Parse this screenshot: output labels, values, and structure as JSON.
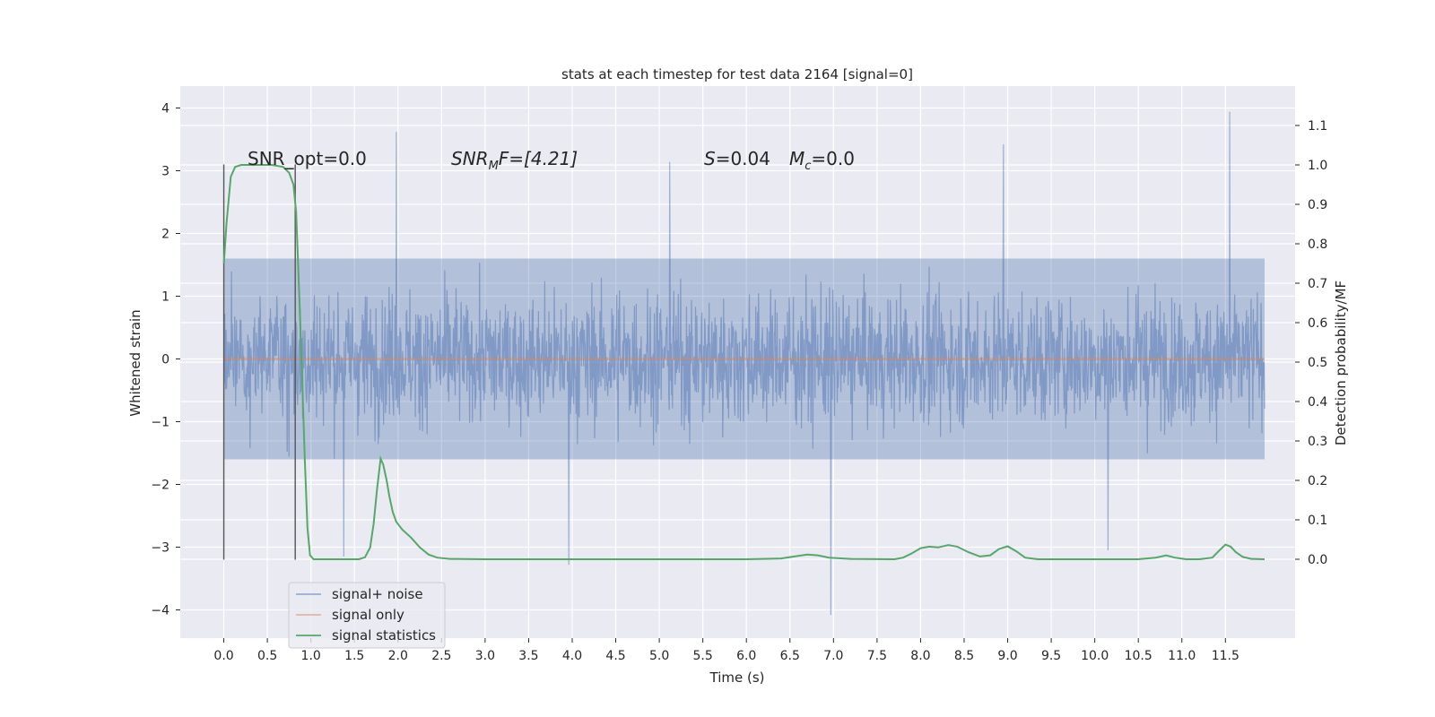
{
  "chart_data": {
    "type": "line",
    "title": "stats at each timestep for test data 2164 [signal=0]",
    "xlabel": "Time (s)",
    "ylabel_left": "Whitened strain",
    "ylabel_right": "Detection probability/MF",
    "xlim": [
      -0.5,
      12.3
    ],
    "ylim_left": [
      -4.45,
      4.35
    ],
    "ylim_right": [
      -0.2,
      1.2
    ],
    "x_ticks": [
      "0.0",
      "0.5",
      "1.0",
      "1.5",
      "2.0",
      "2.5",
      "3.0",
      "3.5",
      "4.0",
      "4.5",
      "5.0",
      "5.5",
      "6.0",
      "6.5",
      "7.0",
      "7.5",
      "8.0",
      "8.5",
      "9.0",
      "9.5",
      "10.0",
      "10.5",
      "11.0",
      "11.5"
    ],
    "y_left_ticks": [
      "4",
      "3",
      "2",
      "1",
      "0",
      "−1",
      "−2",
      "−3",
      "−4"
    ],
    "y_right_ticks": [
      "1.1",
      "1.0",
      "0.9",
      "0.8",
      "0.7",
      "0.6",
      "0.5",
      "0.4",
      "0.3",
      "0.2",
      "0.1",
      "0.0"
    ],
    "grid": true,
    "legend_placement": "lower-left",
    "annotations": {
      "snr_opt": "SNR_opt=0.0",
      "snr_mf_prefix": "SNR",
      "snr_mf_sub": "M",
      "snr_mf_suffix": "F=[4.21]",
      "s_prefix": "S",
      "s_suffix": "=0.04",
      "mc_prefix": "M",
      "mc_sub": "c",
      "mc_suffix": "=0.0"
    },
    "markers": {
      "vertical_lines_x": [
        0.0,
        0.82
      ],
      "y_range": [
        -3.2,
        3.1
      ]
    },
    "series": [
      {
        "name": "signal+ noise",
        "color": "#4c72b0",
        "opacity": 0.5,
        "x_range": [
          0.0,
          11.95
        ],
        "typical_range": [
          -1.6,
          1.6
        ],
        "extremes": [
          {
            "x": 1.98,
            "y": 3.62
          },
          {
            "x": 11.55,
            "y": 3.94
          },
          {
            "x": 8.95,
            "y": 3.42
          },
          {
            "x": 5.12,
            "y": 3.14
          },
          {
            "x": 6.97,
            "y": -4.08
          },
          {
            "x": 3.96,
            "y": -3.28
          },
          {
            "x": 10.15,
            "y": -3.05
          },
          {
            "x": 1.38,
            "y": -3.15
          }
        ]
      },
      {
        "name": "signal only",
        "color": "#dd8452",
        "x_range": [
          0.0,
          11.95
        ],
        "values_const": 0.0
      },
      {
        "name": "signal statistics",
        "color": "#55a868",
        "axis": "right",
        "points": [
          [
            0.0,
            0.75
          ],
          [
            0.03,
            0.85
          ],
          [
            0.08,
            0.97
          ],
          [
            0.13,
            0.995
          ],
          [
            0.2,
            1.0
          ],
          [
            0.35,
            1.0
          ],
          [
            0.55,
            1.0
          ],
          [
            0.68,
            0.995
          ],
          [
            0.75,
            0.98
          ],
          [
            0.8,
            0.95
          ],
          [
            0.83,
            0.88
          ],
          [
            0.87,
            0.65
          ],
          [
            0.9,
            0.45
          ],
          [
            0.93,
            0.25
          ],
          [
            0.96,
            0.08
          ],
          [
            0.99,
            0.01
          ],
          [
            1.03,
            0.0
          ],
          [
            1.15,
            0.0
          ],
          [
            1.4,
            0.0
          ],
          [
            1.55,
            0.0
          ],
          [
            1.62,
            0.005
          ],
          [
            1.68,
            0.03
          ],
          [
            1.72,
            0.09
          ],
          [
            1.76,
            0.18
          ],
          [
            1.8,
            0.255
          ],
          [
            1.83,
            0.24
          ],
          [
            1.87,
            0.2
          ],
          [
            1.9,
            0.16
          ],
          [
            1.94,
            0.12
          ],
          [
            1.98,
            0.095
          ],
          [
            2.05,
            0.075
          ],
          [
            2.15,
            0.055
          ],
          [
            2.25,
            0.03
          ],
          [
            2.35,
            0.012
          ],
          [
            2.45,
            0.004
          ],
          [
            2.6,
            0.001
          ],
          [
            3.0,
            0.0
          ],
          [
            4.0,
            0.0
          ],
          [
            5.0,
            0.0
          ],
          [
            6.0,
            0.0
          ],
          [
            6.4,
            0.002
          ],
          [
            6.55,
            0.007
          ],
          [
            6.7,
            0.012
          ],
          [
            6.82,
            0.01
          ],
          [
            6.95,
            0.004
          ],
          [
            7.2,
            0.001
          ],
          [
            7.7,
            0.0
          ],
          [
            7.8,
            0.004
          ],
          [
            7.9,
            0.015
          ],
          [
            8.0,
            0.028
          ],
          [
            8.1,
            0.032
          ],
          [
            8.2,
            0.03
          ],
          [
            8.32,
            0.036
          ],
          [
            8.42,
            0.032
          ],
          [
            8.55,
            0.018
          ],
          [
            8.68,
            0.007
          ],
          [
            8.8,
            0.01
          ],
          [
            8.9,
            0.026
          ],
          [
            9.0,
            0.033
          ],
          [
            9.1,
            0.02
          ],
          [
            9.2,
            0.004
          ],
          [
            9.35,
            0.0
          ],
          [
            10.0,
            0.0
          ],
          [
            10.5,
            0.0
          ],
          [
            10.7,
            0.004
          ],
          [
            10.82,
            0.01
          ],
          [
            10.92,
            0.004
          ],
          [
            11.05,
            0.0
          ],
          [
            11.2,
            0.0
          ],
          [
            11.35,
            0.004
          ],
          [
            11.42,
            0.02
          ],
          [
            11.5,
            0.037
          ],
          [
            11.56,
            0.032
          ],
          [
            11.62,
            0.018
          ],
          [
            11.7,
            0.006
          ],
          [
            11.8,
            0.001
          ],
          [
            11.95,
            0.0
          ]
        ]
      }
    ]
  }
}
